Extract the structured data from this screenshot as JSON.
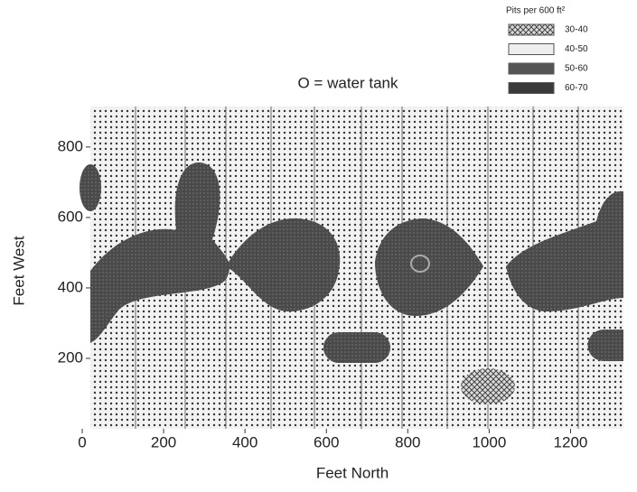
{
  "chart_data": {
    "type": "contour-map",
    "annotation": "O = water tank",
    "xlabel": "Feet North",
    "ylabel": "Feet West",
    "xlim": [
      20,
      1330
    ],
    "ylim": [
      0,
      915
    ],
    "xticks": [
      0,
      200,
      400,
      600,
      800,
      1000,
      1200
    ],
    "yticks": [
      200,
      400,
      600,
      800
    ],
    "legend_title": "Pits per 600 ft²",
    "legend": [
      {
        "name": "30-40",
        "color": "#bbbbbb"
      },
      {
        "name": "40-50",
        "color": "#eeeeee"
      },
      {
        "name": "50-60",
        "color": "#555555"
      },
      {
        "name": "60-70",
        "color": "#3a3a3a"
      }
    ]
  }
}
